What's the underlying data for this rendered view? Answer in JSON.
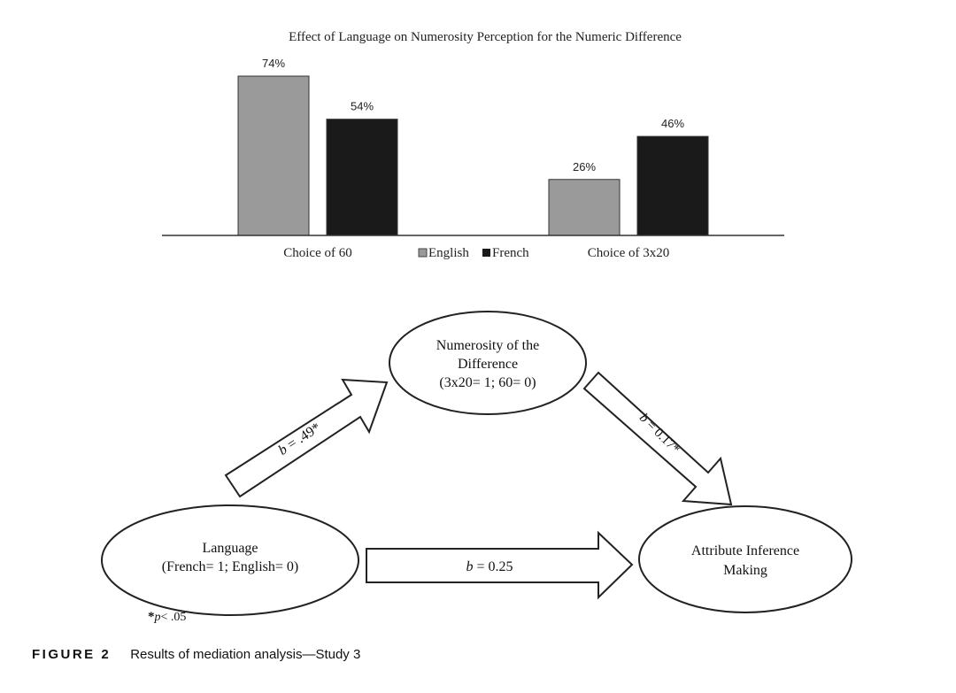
{
  "chart_data": {
    "type": "bar",
    "title": "Effect of Language on Numerosity Perception for the Numeric Difference",
    "categories": [
      "Choice of 60",
      "Choice of 3x20"
    ],
    "series": [
      {
        "name": "English",
        "values": [
          74,
          26
        ],
        "labels": [
          "74%",
          "26%"
        ],
        "color": "#9a9a9a"
      },
      {
        "name": "French",
        "values": [
          54,
          46
        ],
        "labels": [
          "54%",
          "46%"
        ],
        "color": "#1a1a1a"
      }
    ],
    "unit": "%",
    "ylim": [
      0,
      80
    ],
    "legend_position": "bottom-center"
  },
  "diagram": {
    "language_node": {
      "line1": "Language",
      "line2": "(French= 1; English= 0)"
    },
    "numerosity_node": {
      "line1": "Numerosity of the",
      "line2": "Difference",
      "line3": "(3x20= 1; 60= 0)"
    },
    "attribute_node": {
      "line1": "Attribute Inference",
      "line2": "Making"
    },
    "path_a": {
      "prefix": "b",
      "value": " = .49*"
    },
    "path_b": {
      "prefix": "b",
      "value": " = 0.17*"
    },
    "path_c": {
      "prefix": "b",
      "value": " = 0.25"
    },
    "significance_note": {
      "star": "*",
      "p": "p",
      "text": "< .05"
    }
  },
  "caption": {
    "label": "FIGURE 2",
    "text": "Results of mediation analysis—Study 3"
  }
}
